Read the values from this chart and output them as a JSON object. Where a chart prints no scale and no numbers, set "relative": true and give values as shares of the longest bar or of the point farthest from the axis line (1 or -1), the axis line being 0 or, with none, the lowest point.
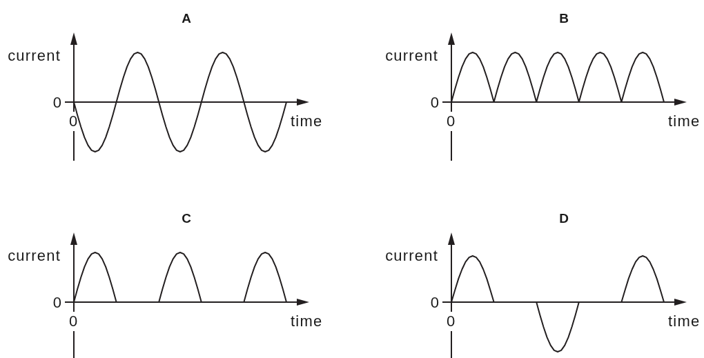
{
  "chart_data": [
    {
      "type": "line",
      "title": "A",
      "xlabel": "time",
      "ylabel": "current",
      "relative": true,
      "categories": [
        null,
        null,
        null,
        null,
        null,
        null,
        null,
        null,
        null,
        null,
        null,
        null,
        null,
        null,
        null,
        null,
        null,
        null,
        null,
        null,
        null,
        null,
        null,
        null,
        null,
        null,
        null,
        null,
        null,
        null,
        null,
        null,
        null,
        null,
        null,
        null,
        null,
        null,
        null,
        null,
        null,
        null,
        null,
        null,
        null,
        null,
        null,
        null,
        null,
        null,
        null,
        null,
        null,
        null,
        null,
        null,
        null,
        null,
        null,
        null,
        null
      ],
      "series": [
        {
          "color": "#231f20",
          "values": [
            0,
            -0.26,
            -0.5,
            -0.71,
            -0.87,
            -0.97,
            -1,
            -0.97,
            -0.87,
            -0.71,
            -0.5,
            -0.26,
            0,
            0.26,
            0.5,
            0.71,
            0.87,
            0.97,
            1,
            0.97,
            0.87,
            0.71,
            0.5,
            0.26,
            0,
            -0.26,
            -0.5,
            -0.71,
            -0.87,
            -0.97,
            -1,
            -0.97,
            -0.87,
            -0.71,
            -0.5,
            -0.26,
            0,
            0.26,
            0.5,
            0.71,
            0.87,
            0.97,
            1,
            0.97,
            0.87,
            0.71,
            0.5,
            0.26,
            0,
            -0.26,
            -0.5,
            -0.71,
            -0.87,
            -0.97,
            -1,
            -0.97,
            -0.87,
            -0.71,
            -0.5,
            -0.26,
            0
          ]
        }
      ],
      "annotations": [
        "0",
        "0"
      ]
    },
    {
      "type": "line",
      "title": "B",
      "xlabel": "time",
      "ylabel": "current",
      "relative": true,
      "categories": [
        null,
        null,
        null,
        null,
        null,
        null,
        null,
        null,
        null,
        null,
        null,
        null,
        null,
        null,
        null,
        null,
        null,
        null,
        null,
        null,
        null,
        null,
        null,
        null,
        null,
        null,
        null,
        null,
        null,
        null,
        null,
        null,
        null,
        null,
        null,
        null,
        null,
        null,
        null,
        null,
        null,
        null,
        null,
        null,
        null,
        null,
        null,
        null,
        null,
        null,
        null,
        null,
        null,
        null,
        null,
        null,
        null,
        null,
        null,
        null,
        null
      ],
      "series": [
        {
          "color": "#231f20",
          "values": [
            0,
            0.26,
            0.5,
            0.71,
            0.87,
            0.97,
            1,
            0.97,
            0.87,
            0.71,
            0.5,
            0.26,
            0,
            0.26,
            0.5,
            0.71,
            0.87,
            0.97,
            1,
            0.97,
            0.87,
            0.71,
            0.5,
            0.26,
            0,
            0.26,
            0.5,
            0.71,
            0.87,
            0.97,
            1,
            0.97,
            0.87,
            0.71,
            0.5,
            0.26,
            0,
            0.26,
            0.5,
            0.71,
            0.87,
            0.97,
            1,
            0.97,
            0.87,
            0.71,
            0.5,
            0.26,
            0,
            0.26,
            0.5,
            0.71,
            0.87,
            0.97,
            1,
            0.97,
            0.87,
            0.71,
            0.5,
            0.26,
            0
          ]
        }
      ],
      "annotations": [
        "0",
        "0"
      ]
    },
    {
      "type": "line",
      "title": "C",
      "xlabel": "time",
      "ylabel": "current",
      "relative": true,
      "categories": [
        null,
        null,
        null,
        null,
        null,
        null,
        null,
        null,
        null,
        null,
        null,
        null,
        null,
        null,
        null,
        null,
        null,
        null,
        null,
        null,
        null,
        null,
        null,
        null,
        null,
        null,
        null,
        null,
        null,
        null,
        null,
        null,
        null,
        null,
        null,
        null,
        null,
        null,
        null,
        null,
        null,
        null,
        null,
        null,
        null,
        null,
        null,
        null,
        null,
        null,
        null,
        null,
        null,
        null,
        null,
        null,
        null,
        null,
        null,
        null,
        null
      ],
      "series": [
        {
          "color": "#231f20",
          "values": [
            0,
            0.26,
            0.5,
            0.71,
            0.87,
            0.97,
            1,
            0.97,
            0.87,
            0.71,
            0.5,
            0.26,
            0,
            0,
            0,
            0,
            0,
            0,
            0,
            0,
            0,
            0,
            0,
            0,
            0,
            0.26,
            0.5,
            0.71,
            0.87,
            0.97,
            1,
            0.97,
            0.87,
            0.71,
            0.5,
            0.26,
            0,
            0,
            0,
            0,
            0,
            0,
            0,
            0,
            0,
            0,
            0,
            0,
            0,
            0.26,
            0.5,
            0.71,
            0.87,
            0.97,
            1,
            0.97,
            0.87,
            0.71,
            0.5,
            0.26,
            0
          ]
        }
      ],
      "annotations": [
        "0",
        "0"
      ]
    },
    {
      "type": "line",
      "title": "D",
      "xlabel": "time",
      "ylabel": "current",
      "relative": true,
      "categories": [
        null,
        null,
        null,
        null,
        null,
        null,
        null,
        null,
        null,
        null,
        null,
        null,
        null,
        null,
        null,
        null,
        null,
        null,
        null,
        null,
        null,
        null,
        null,
        null,
        null,
        null,
        null,
        null,
        null,
        null,
        null,
        null,
        null,
        null,
        null,
        null,
        null,
        null,
        null,
        null,
        null,
        null,
        null,
        null,
        null,
        null,
        null,
        null,
        null,
        null,
        null,
        null,
        null,
        null,
        null,
        null,
        null,
        null,
        null,
        null,
        null
      ],
      "series": [
        {
          "color": "#231f20",
          "values": [
            0,
            0.24,
            0.47,
            0.66,
            0.81,
            0.9,
            0.93,
            0.9,
            0.81,
            0.66,
            0.47,
            0.24,
            0,
            0,
            0,
            0,
            0,
            0,
            0,
            0,
            0,
            0,
            0,
            0,
            0,
            -0.26,
            -0.5,
            -0.71,
            -0.87,
            -0.97,
            -1,
            -0.97,
            -0.87,
            -0.71,
            -0.5,
            -0.26,
            0,
            0,
            0,
            0,
            0,
            0,
            0,
            0,
            0,
            0,
            0,
            0,
            0,
            0.24,
            0.47,
            0.66,
            0.81,
            0.9,
            0.93,
            0.9,
            0.81,
            0.66,
            0.47,
            0.24,
            0
          ]
        }
      ],
      "annotations": [
        "0",
        "0"
      ]
    }
  ]
}
